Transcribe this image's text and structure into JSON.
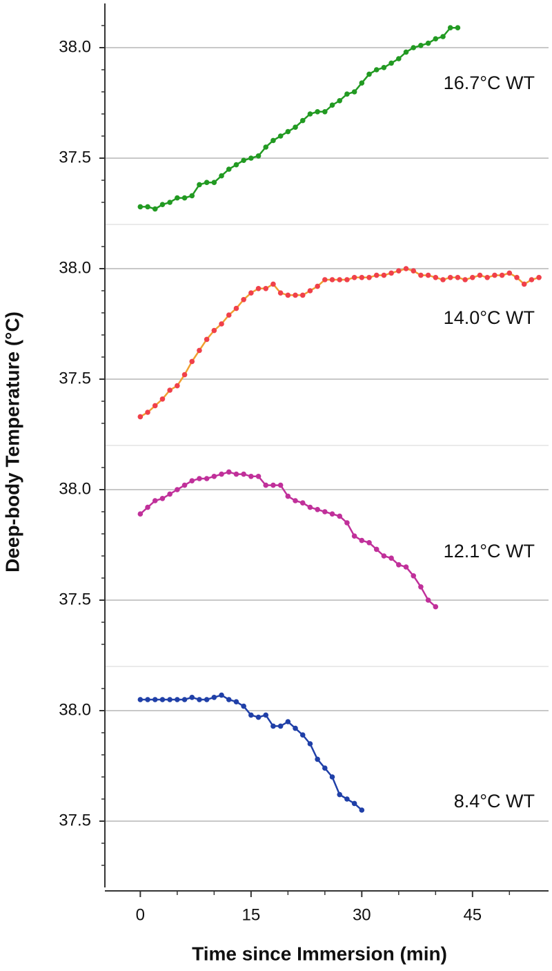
{
  "chart_data": {
    "type": "line",
    "ylabel": "Deep-body Temperature (°C)",
    "xlabel": "Time since Immersion (min)",
    "xlim": [
      -4.8,
      55.3
    ],
    "xticks": [
      0,
      15,
      30,
      45
    ],
    "xminorticks": [
      5,
      10,
      20,
      25,
      35,
      40,
      50
    ],
    "ylim": [
      37.2,
      38.2
    ],
    "yticks": [
      {
        "value": 38,
        "label": "38.0"
      },
      37.5
    ],
    "yminorticks": [
      37.3,
      37.4,
      37.6,
      37.7,
      37.8,
      37.9,
      38.1
    ],
    "grid": true,
    "panels": [
      {
        "name": "16.7°C WT",
        "color": "#229a22",
        "line_color": "#229a22",
        "x": [
          0,
          1,
          2,
          3,
          4,
          5,
          6,
          7,
          8,
          9,
          10,
          11,
          12,
          13,
          14,
          15,
          16,
          17,
          18,
          19,
          20,
          21,
          22,
          23,
          24,
          25,
          26,
          27,
          28,
          29,
          30,
          31,
          32,
          33,
          34,
          35,
          36,
          37,
          38,
          39,
          40,
          41,
          42,
          43
        ],
        "values": [
          37.28,
          37.28,
          37.27,
          37.29,
          37.3,
          37.32,
          37.32,
          37.33,
          37.38,
          37.39,
          37.39,
          37.42,
          37.45,
          37.47,
          37.49,
          37.5,
          37.51,
          37.55,
          37.58,
          37.6,
          37.62,
          37.64,
          37.67,
          37.7,
          37.71,
          37.71,
          37.74,
          37.76,
          37.79,
          37.8,
          37.84,
          37.88,
          37.9,
          37.91,
          37.93,
          37.95,
          37.98,
          38.0,
          38.01,
          38.02,
          38.04,
          38.05,
          38.09,
          38.09
        ]
      },
      {
        "name": "14.0°C WT",
        "color": "#f0404a",
        "line_color": "#f0a030",
        "x": [
          0,
          1,
          2,
          3,
          4,
          5,
          6,
          7,
          8,
          9,
          10,
          11,
          12,
          13,
          14,
          15,
          16,
          17,
          18,
          19,
          20,
          21,
          22,
          23,
          24,
          25,
          26,
          27,
          28,
          29,
          30,
          31,
          32,
          33,
          34,
          35,
          36,
          37,
          38,
          39,
          40,
          41,
          42,
          43,
          44,
          45,
          46,
          47,
          48,
          49,
          50,
          51,
          52,
          53,
          54
        ],
        "values": [
          37.33,
          37.35,
          37.38,
          37.41,
          37.45,
          37.47,
          37.52,
          37.58,
          37.63,
          37.68,
          37.72,
          37.75,
          37.79,
          37.82,
          37.86,
          37.89,
          37.91,
          37.91,
          37.93,
          37.89,
          37.88,
          37.88,
          37.88,
          37.9,
          37.92,
          37.95,
          37.95,
          37.95,
          37.95,
          37.96,
          37.96,
          37.96,
          37.97,
          37.97,
          37.98,
          37.99,
          38.0,
          37.99,
          37.97,
          37.97,
          37.96,
          37.95,
          37.96,
          37.96,
          37.95,
          37.96,
          37.97,
          37.96,
          37.97,
          37.97,
          37.98,
          37.96,
          37.93,
          37.95,
          37.96
        ]
      },
      {
        "name": "12.1°C WT",
        "color": "#c0309a",
        "line_color": "#c0309a",
        "x": [
          0,
          1,
          2,
          3,
          4,
          5,
          6,
          7,
          8,
          9,
          10,
          11,
          12,
          13,
          14,
          15,
          16,
          17,
          18,
          19,
          20,
          21,
          22,
          23,
          24,
          25,
          26,
          27,
          28,
          29,
          30,
          31,
          32,
          33,
          34,
          35,
          36,
          37,
          38,
          39,
          40
        ],
        "values": [
          37.89,
          37.92,
          37.95,
          37.96,
          37.98,
          38.0,
          38.02,
          38.04,
          38.05,
          38.05,
          38.06,
          38.07,
          38.08,
          38.07,
          38.07,
          38.06,
          38.06,
          38.02,
          38.02,
          38.02,
          37.97,
          37.95,
          37.94,
          37.92,
          37.91,
          37.9,
          37.89,
          37.88,
          37.85,
          37.79,
          37.77,
          37.76,
          37.73,
          37.7,
          37.69,
          37.66,
          37.65,
          37.61,
          37.56,
          37.5,
          37.47
        ]
      },
      {
        "name": "8.4°C WT",
        "color": "#2040a8",
        "line_color": "#2040a8",
        "x": [
          0,
          1,
          2,
          3,
          4,
          5,
          6,
          7,
          8,
          9,
          10,
          11,
          12,
          13,
          14,
          15,
          16,
          17,
          18,
          19,
          20,
          21,
          22,
          23,
          24,
          25,
          26,
          27,
          28,
          29,
          30
        ],
        "values": [
          38.05,
          38.05,
          38.05,
          38.05,
          38.05,
          38.05,
          38.05,
          38.06,
          38.05,
          38.05,
          38.06,
          38.07,
          38.05,
          38.04,
          38.02,
          37.98,
          37.97,
          37.98,
          37.93,
          37.93,
          37.95,
          37.92,
          37.89,
          37.85,
          37.78,
          37.74,
          37.7,
          37.62,
          37.6,
          37.58,
          37.55
        ]
      }
    ]
  }
}
